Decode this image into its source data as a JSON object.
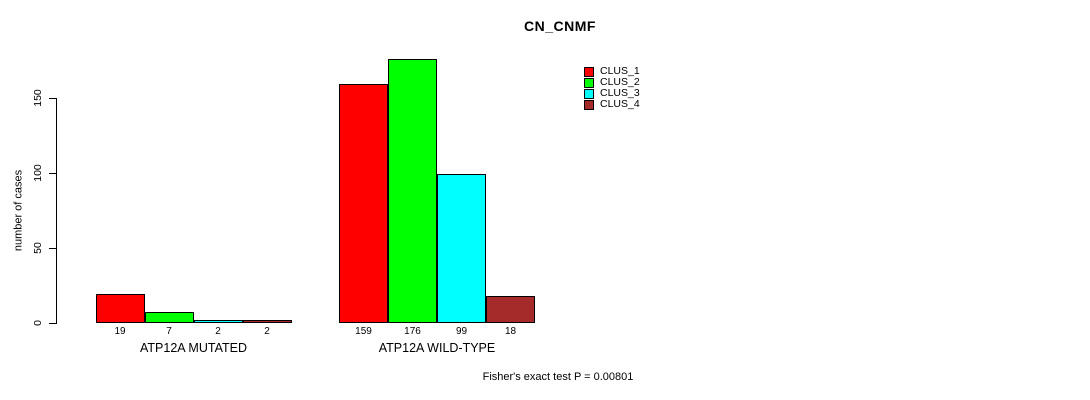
{
  "title": "CN_CNMF",
  "y_axis": {
    "label": "number of cases",
    "ticks": [
      0,
      50,
      100,
      150
    ]
  },
  "footer": "Fisher's exact test P = 0.00801",
  "legend": {
    "items": [
      {
        "label": "CLUS_1",
        "color": "#FF0000"
      },
      {
        "label": "CLUS_2",
        "color": "#00FF00"
      },
      {
        "label": "CLUS_3",
        "color": "#00FFFF"
      },
      {
        "label": "CLUS_4",
        "color": "#A52A2A"
      }
    ]
  },
  "chart_data": {
    "type": "bar",
    "title": "CN_CNMF",
    "xlabel": "",
    "ylabel": "number of cases",
    "categories": [
      "ATP12A MUTATED",
      "ATP12A WILD-TYPE"
    ],
    "series": [
      {
        "name": "CLUS_1",
        "color": "#FF0000",
        "values": [
          19,
          159
        ]
      },
      {
        "name": "CLUS_2",
        "color": "#00FF00",
        "values": [
          7,
          176
        ]
      },
      {
        "name": "CLUS_3",
        "color": "#00FFFF",
        "values": [
          2,
          99
        ]
      },
      {
        "name": "CLUS_4",
        "color": "#A52A2A",
        "values": [
          2,
          18
        ]
      }
    ],
    "bar_value_labels": {
      "ATP12A MUTATED": [
        19,
        7,
        2,
        2
      ],
      "ATP12A WILD-TYPE": [
        159,
        176,
        99,
        18
      ]
    },
    "ylim": [
      0,
      176
    ],
    "yticks": [
      0,
      50,
      100,
      150
    ],
    "grid": false,
    "legend_position": "right-of-title",
    "annotation": "Fisher's exact test P = 0.00801"
  }
}
